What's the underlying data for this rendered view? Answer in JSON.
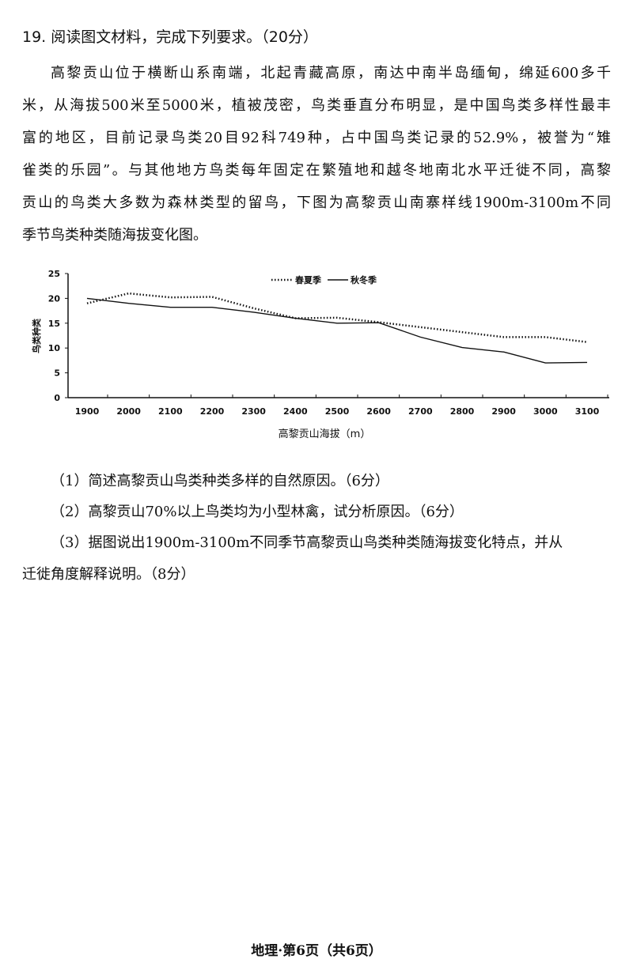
{
  "question": {
    "title": "19. 阅读图文材料，完成下列要求。（20分）",
    "paragraph_lines": [
      "高黎贡山位于横断山系南端，北起青藏高原，南达中南半岛缅甸，绵延600多千",
      "米，从海拔500米至5000米，植被茂密，鸟类垂直分布明显，是中国鸟类多样性最丰",
      "富的地区，目前记录鸟类20目92科749种，占中国鸟类记录的52.9%，被誉为“雉",
      "雀类的乐园”。与其他地方鸟类每年固定在繁殖地和越冬地南北水平迁徙不同，高黎",
      "贡山的鸟类大多数为森林类型的留鸟，下图为高黎贡山南寨样线1900m-3100m不同",
      "季节鸟类种类随海拔变化图。"
    ],
    "sub_questions": [
      "（1）简述高黎贡山鸟类种类多样的自然原因。（6分）",
      "（2）高黎贡山70%以上鸟类均为小型林禽，试分析原因。（6分）",
      "（3）据图说出1900m-3100m不同季节高黎贡山鸟类种类随海拔变化特点，并从",
      "迁徙角度解释说明。（8分）"
    ]
  },
  "footer": "地理·第6页（共6页）",
  "chart_data": {
    "type": "line",
    "title": "",
    "xlabel": "高黎贡山海拔（m）",
    "ylabel": "鸟类种类",
    "x": [
      1900,
      2000,
      2100,
      2200,
      2300,
      2400,
      2500,
      2600,
      2700,
      2800,
      2900,
      3000,
      3100
    ],
    "x_tick_labels": [
      "1900",
      "2000",
      "2100",
      "2200",
      "2300",
      "2400",
      "2500",
      "2600",
      "2700",
      "2800",
      "2900",
      "3000",
      "3100"
    ],
    "y_tick_labels": [
      "0",
      "5",
      "10",
      "15",
      "20",
      "25"
    ],
    "ylim": [
      0,
      25
    ],
    "grid": false,
    "legend_position": "top-center",
    "series": [
      {
        "name": "春夏季",
        "style": "dotted",
        "values": [
          19,
          21,
          20.2,
          20.3,
          18,
          16,
          16.1,
          15.2,
          14.2,
          13.2,
          12.2,
          12.2,
          11.2
        ]
      },
      {
        "name": "秋冬季",
        "style": "solid",
        "values": [
          20,
          19,
          18.2,
          18.2,
          17.2,
          16,
          15,
          15.1,
          12.2,
          10.1,
          9.2,
          7,
          7.1
        ]
      }
    ]
  }
}
